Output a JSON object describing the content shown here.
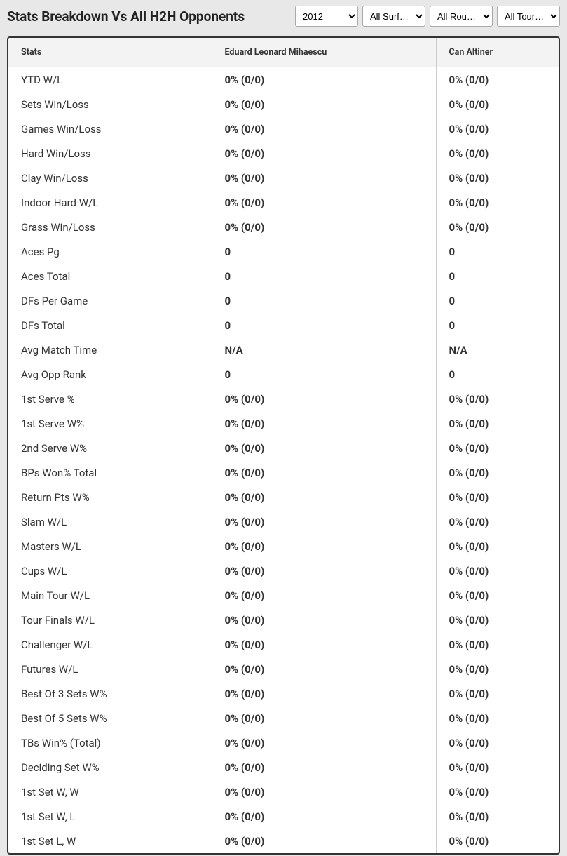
{
  "header": {
    "title": "Stats Breakdown Vs All H2H Opponents"
  },
  "filters": {
    "year": {
      "selected": "2012",
      "options": [
        "2012"
      ]
    },
    "surface": {
      "selected": "All Surf…",
      "options": [
        "All Surf…"
      ]
    },
    "round": {
      "selected": "All Rou…",
      "options": [
        "All Rou…"
      ]
    },
    "tour": {
      "selected": "All Tour…",
      "options": [
        "All Tour…"
      ]
    }
  },
  "table": {
    "columns": [
      "Stats",
      "Eduard Leonard Mihaescu",
      "Can Altiner"
    ],
    "rows": [
      [
        "YTD W/L",
        "0% (0/0)",
        "0% (0/0)"
      ],
      [
        "Sets Win/Loss",
        "0% (0/0)",
        "0% (0/0)"
      ],
      [
        "Games Win/Loss",
        "0% (0/0)",
        "0% (0/0)"
      ],
      [
        "Hard Win/Loss",
        "0% (0/0)",
        "0% (0/0)"
      ],
      [
        "Clay Win/Loss",
        "0% (0/0)",
        "0% (0/0)"
      ],
      [
        "Indoor Hard W/L",
        "0% (0/0)",
        "0% (0/0)"
      ],
      [
        "Grass Win/Loss",
        "0% (0/0)",
        "0% (0/0)"
      ],
      [
        "Aces Pg",
        "0",
        "0"
      ],
      [
        "Aces Total",
        "0",
        "0"
      ],
      [
        "DFs Per Game",
        "0",
        "0"
      ],
      [
        "DFs Total",
        "0",
        "0"
      ],
      [
        "Avg Match Time",
        "N/A",
        "N/A"
      ],
      [
        "Avg Opp Rank",
        "0",
        "0"
      ],
      [
        "1st Serve %",
        "0% (0/0)",
        "0% (0/0)"
      ],
      [
        "1st Serve W%",
        "0% (0/0)",
        "0% (0/0)"
      ],
      [
        "2nd Serve W%",
        "0% (0/0)",
        "0% (0/0)"
      ],
      [
        "BPs Won% Total",
        "0% (0/0)",
        "0% (0/0)"
      ],
      [
        "Return Pts W%",
        "0% (0/0)",
        "0% (0/0)"
      ],
      [
        "Slam W/L",
        "0% (0/0)",
        "0% (0/0)"
      ],
      [
        "Masters W/L",
        "0% (0/0)",
        "0% (0/0)"
      ],
      [
        "Cups W/L",
        "0% (0/0)",
        "0% (0/0)"
      ],
      [
        "Main Tour W/L",
        "0% (0/0)",
        "0% (0/0)"
      ],
      [
        "Tour Finals W/L",
        "0% (0/0)",
        "0% (0/0)"
      ],
      [
        "Challenger W/L",
        "0% (0/0)",
        "0% (0/0)"
      ],
      [
        "Futures W/L",
        "0% (0/0)",
        "0% (0/0)"
      ],
      [
        "Best Of 3 Sets W%",
        "0% (0/0)",
        "0% (0/0)"
      ],
      [
        "Best Of 5 Sets W%",
        "0% (0/0)",
        "0% (0/0)"
      ],
      [
        "TBs Win% (Total)",
        "0% (0/0)",
        "0% (0/0)"
      ],
      [
        "Deciding Set W%",
        "0% (0/0)",
        "0% (0/0)"
      ],
      [
        "1st Set W, W",
        "0% (0/0)",
        "0% (0/0)"
      ],
      [
        "1st Set W, L",
        "0% (0/0)",
        "0% (0/0)"
      ],
      [
        "1st Set L, W",
        "0% (0/0)",
        "0% (0/0)"
      ]
    ]
  },
  "styling": {
    "background_color": "#e8e8e8",
    "table_border_color": "#333333",
    "header_bg": "#f3f3f3",
    "cell_border_color": "#cccccc",
    "text_color": "#333333",
    "title_fontsize": 19,
    "header_fontsize": 12.5,
    "cell_fontsize": 15
  }
}
